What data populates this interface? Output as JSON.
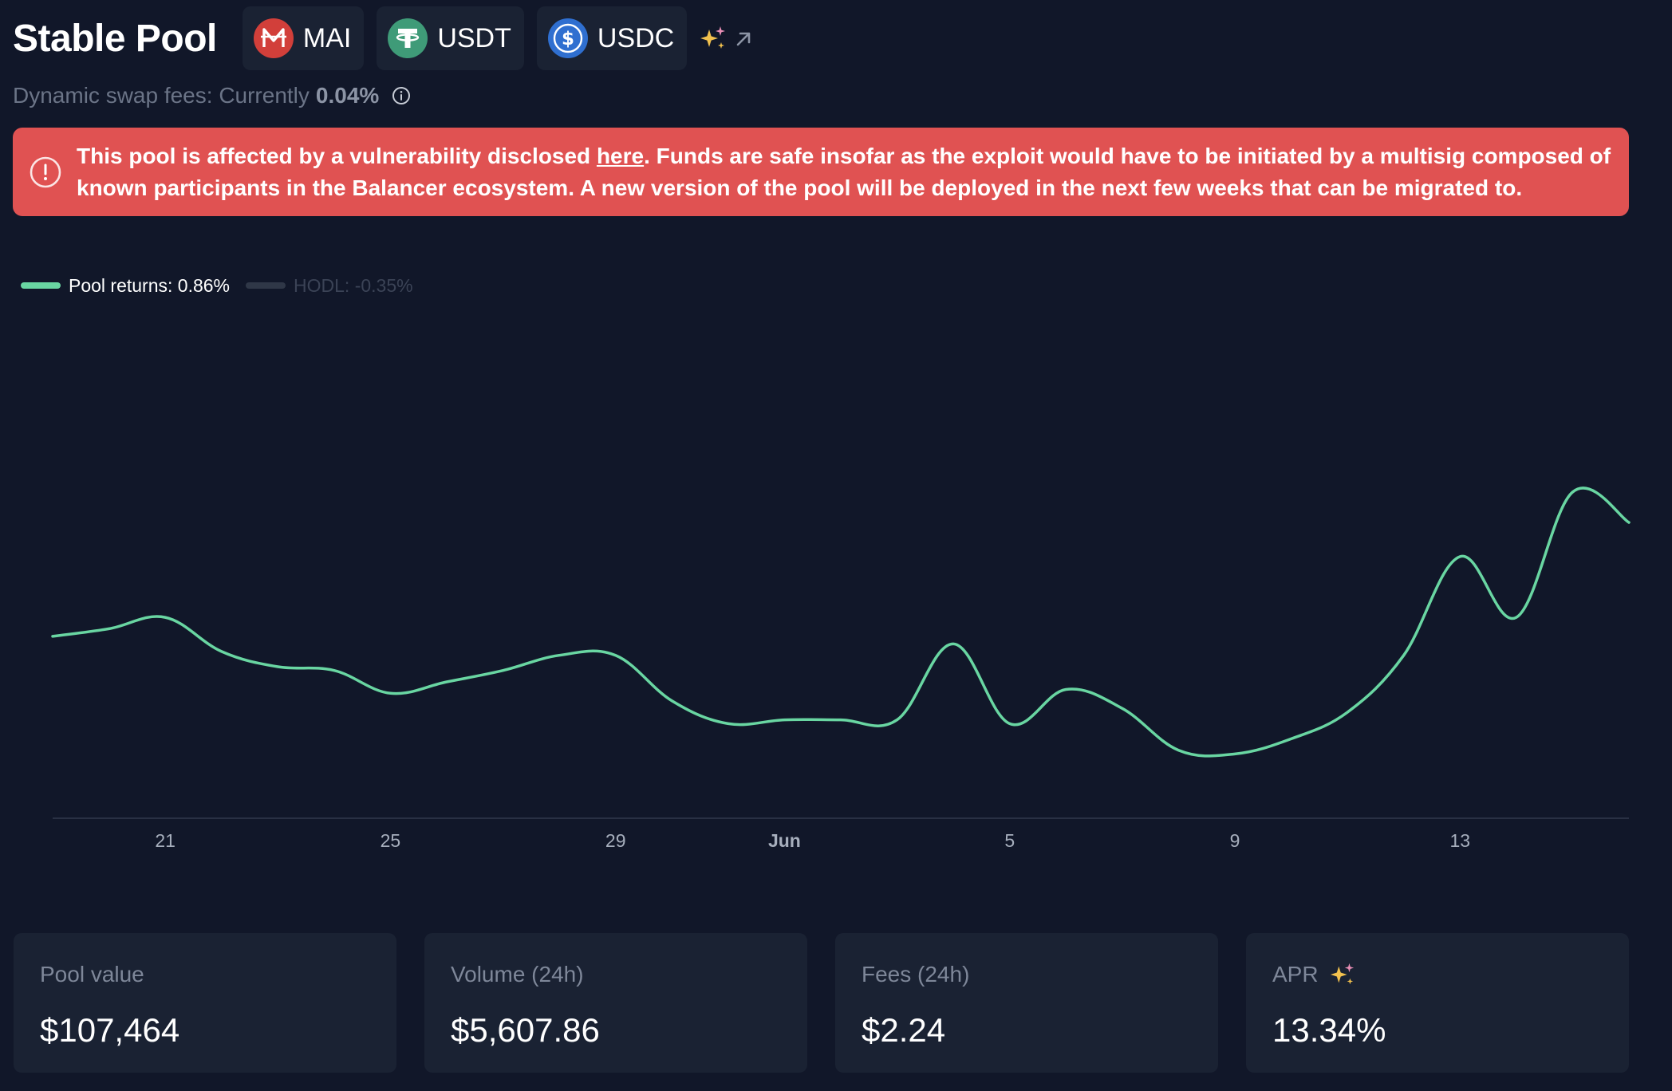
{
  "header": {
    "title": "Stable Pool",
    "tokens": [
      {
        "symbol": "MAI",
        "icon": "mai-token-icon",
        "color": "#d23f3a"
      },
      {
        "symbol": "USDT",
        "icon": "usdt-token-icon",
        "color": "#3f9b78"
      },
      {
        "symbol": "USDC",
        "icon": "usdc-token-icon",
        "color": "#2f6fd0"
      }
    ],
    "sparkle_icon": "sparkle-icon",
    "external_icon": "arrow-up-right-icon"
  },
  "fees": {
    "label": "Dynamic swap fees: Currently",
    "value": "0.04%",
    "icon": "info-icon"
  },
  "alert": {
    "icon": "alert-circle-icon",
    "text_before": "This pool is affected by a vulnerability disclosed ",
    "link_text": "here",
    "text_after": ". Funds are safe insofar as the exploit would have to be initiated by a multisig composed of known participants in the Balancer ecosystem. A new version of the pool will be deployed in the next few weeks that can be migrated to.",
    "color": "#e05252"
  },
  "legend": {
    "pool_returns": "Pool returns: 0.86%",
    "hodl": "HODL: -0.35%"
  },
  "chart_data": {
    "type": "line",
    "x_ticks": [
      "21",
      "25",
      "29",
      "Jun",
      "5",
      "9",
      "13"
    ],
    "x_tick_days": [
      2,
      6,
      10,
      13,
      17,
      21,
      25
    ],
    "x_range": [
      0,
      28
    ],
    "y_range": [
      0,
      1
    ],
    "grid": false,
    "series": [
      {
        "name": "Pool returns",
        "color": "#69d6a2",
        "x": [
          0,
          1,
          2,
          3,
          4,
          5,
          6,
          7,
          8,
          9,
          10,
          11,
          12,
          13,
          14,
          15,
          16,
          17,
          18,
          19,
          20,
          21,
          22,
          23,
          24,
          25,
          26,
          27,
          28
        ],
        "y": [
          0.37,
          0.39,
          0.42,
          0.33,
          0.29,
          0.28,
          0.22,
          0.25,
          0.28,
          0.32,
          0.32,
          0.2,
          0.14,
          0.15,
          0.15,
          0.15,
          0.35,
          0.14,
          0.23,
          0.18,
          0.07,
          0.06,
          0.1,
          0.17,
          0.32,
          0.58,
          0.42,
          0.75,
          0.67
        ]
      },
      {
        "name": "HODL",
        "color": "#2f3747",
        "hidden": true
      }
    ]
  },
  "stats": [
    {
      "label": "Pool value",
      "value": "$107,464"
    },
    {
      "label": "Volume (24h)",
      "value": "$5,607.86"
    },
    {
      "label": "Fees (24h)",
      "value": "$2.24"
    },
    {
      "label": "APR",
      "value": "13.34%",
      "icon": "sparkle-icon"
    }
  ]
}
